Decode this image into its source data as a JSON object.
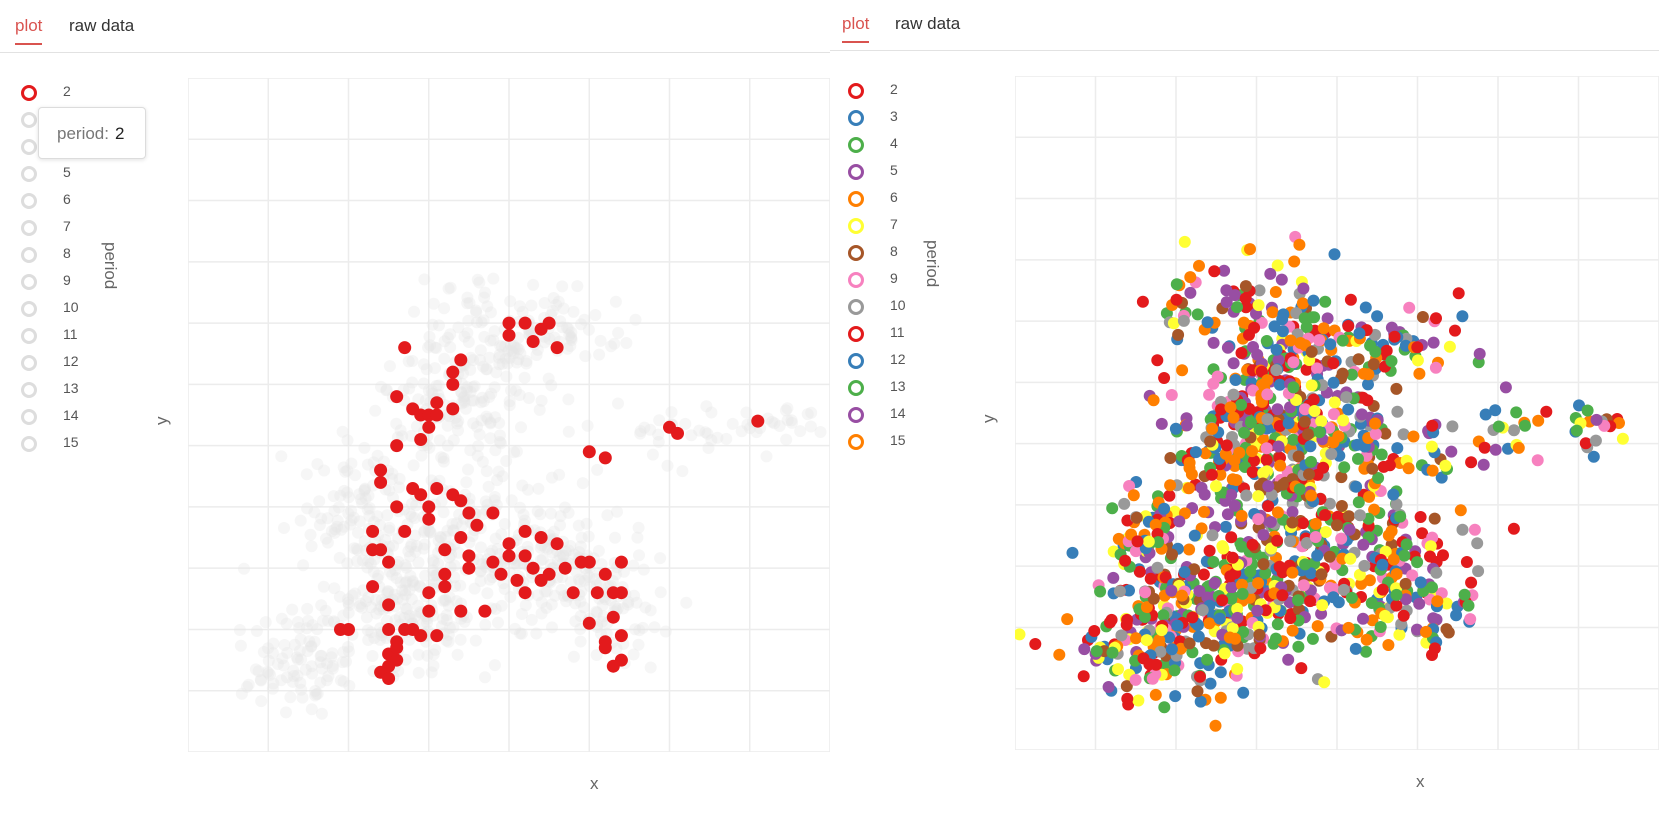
{
  "left": {
    "tabs": [
      {
        "label": "plot",
        "active": true
      },
      {
        "label": "raw data",
        "active": false
      }
    ],
    "legend_title": "period",
    "tooltip": {
      "key": "period:",
      "value": "2"
    },
    "selected_period": "2",
    "chart_data": {
      "type": "scatter",
      "xlabel": "x",
      "ylabel": "y",
      "xlim": [
        0,
        8
      ],
      "ylim": [
        0,
        11
      ],
      "grid": true,
      "legend_placement": "left",
      "legend": [
        "2",
        "3",
        "4",
        "5",
        "6",
        "7",
        "8",
        "9",
        "10",
        "11",
        "12",
        "13",
        "14",
        "15"
      ],
      "highlighted_series": "2",
      "highlight_color": "#e31a1c",
      "background_color": "#e6e6e6",
      "series": [
        {
          "name": "2",
          "points": [
            [
              4.0,
              7.0
            ],
            [
              4.2,
              7.0
            ],
            [
              4.5,
              7.0
            ],
            [
              4.0,
              6.8
            ],
            [
              4.3,
              6.7
            ],
            [
              4.4,
              6.9
            ],
            [
              4.6,
              6.6
            ],
            [
              2.7,
              6.6
            ],
            [
              3.3,
              6.2
            ],
            [
              3.4,
              6.4
            ],
            [
              3.3,
              6.0
            ],
            [
              3.1,
              5.7
            ],
            [
              2.6,
              5.8
            ],
            [
              2.8,
              5.6
            ],
            [
              2.9,
              5.5
            ],
            [
              3.0,
              5.5
            ],
            [
              3.1,
              5.5
            ],
            [
              3.3,
              5.6
            ],
            [
              3.0,
              5.3
            ],
            [
              2.9,
              5.1
            ],
            [
              2.6,
              5.0
            ],
            [
              5.0,
              4.9
            ],
            [
              5.2,
              4.8
            ],
            [
              6.1,
              5.2
            ],
            [
              7.1,
              5.4
            ],
            [
              2.4,
              4.6
            ],
            [
              2.4,
              4.4
            ],
            [
              2.8,
              4.3
            ],
            [
              2.9,
              4.2
            ],
            [
              3.1,
              4.3
            ],
            [
              3.3,
              4.2
            ],
            [
              3.4,
              4.1
            ],
            [
              3.0,
              4.0
            ],
            [
              3.0,
              3.8
            ],
            [
              2.6,
              4.0
            ],
            [
              3.5,
              3.9
            ],
            [
              3.6,
              3.7
            ],
            [
              3.8,
              3.9
            ],
            [
              4.2,
              3.6
            ],
            [
              4.4,
              3.5
            ],
            [
              4.6,
              3.4
            ],
            [
              3.4,
              3.5
            ],
            [
              3.2,
              3.3
            ],
            [
              3.5,
              3.2
            ],
            [
              3.8,
              3.1
            ],
            [
              4.0,
              3.2
            ],
            [
              4.2,
              3.2
            ],
            [
              4.3,
              3.0
            ],
            [
              4.5,
              2.9
            ],
            [
              4.7,
              3.0
            ],
            [
              4.9,
              3.1
            ],
            [
              4.0,
              3.4
            ],
            [
              3.5,
              3.0
            ],
            [
              3.2,
              2.9
            ],
            [
              2.3,
              3.6
            ],
            [
              2.3,
              3.3
            ],
            [
              2.4,
              3.3
            ],
            [
              2.7,
              3.6
            ],
            [
              2.5,
              3.1
            ],
            [
              2.3,
              2.7
            ],
            [
              2.5,
              2.4
            ],
            [
              3.0,
              2.6
            ],
            [
              3.0,
              2.3
            ],
            [
              3.2,
              2.7
            ],
            [
              3.4,
              2.3
            ],
            [
              3.7,
              2.3
            ],
            [
              3.9,
              2.9
            ],
            [
              4.1,
              2.8
            ],
            [
              4.2,
              2.6
            ],
            [
              4.4,
              2.8
            ],
            [
              4.8,
              2.6
            ],
            [
              2.5,
              2.0
            ],
            [
              2.7,
              2.0
            ],
            [
              2.9,
              1.9
            ],
            [
              2.6,
              1.8
            ],
            [
              2.5,
              1.6
            ],
            [
              2.5,
              1.4
            ],
            [
              2.4,
              1.3
            ],
            [
              2.5,
              1.2
            ],
            [
              2.8,
              2.0
            ],
            [
              3.1,
              1.9
            ],
            [
              2.0,
              2.0
            ],
            [
              1.9,
              2.0
            ],
            [
              2.6,
              1.7
            ],
            [
              2.6,
              1.5
            ],
            [
              5.3,
              2.6
            ],
            [
              5.1,
              2.6
            ],
            [
              5.4,
              2.6
            ],
            [
              5.2,
              2.9
            ],
            [
              5.0,
              2.1
            ],
            [
              5.2,
              1.8
            ],
            [
              5.4,
              1.5
            ],
            [
              5.3,
              1.4
            ],
            [
              5.2,
              1.7
            ],
            [
              5.3,
              2.2
            ],
            [
              5.4,
              1.9
            ],
            [
              5.0,
              3.1
            ],
            [
              5.4,
              3.1
            ],
            [
              6.0,
              5.3
            ]
          ]
        }
      ]
    }
  },
  "right": {
    "tabs": [
      {
        "label": "plot",
        "active": true
      },
      {
        "label": "raw data",
        "active": false
      }
    ],
    "legend_title": "period",
    "legend": [
      {
        "label": "2",
        "color": "#e31a1c"
      },
      {
        "label": "3",
        "color": "#377eb8"
      },
      {
        "label": "4",
        "color": "#4daf4a"
      },
      {
        "label": "5",
        "color": "#984ea3"
      },
      {
        "label": "6",
        "color": "#ff7f00"
      },
      {
        "label": "7",
        "color": "#ffff33"
      },
      {
        "label": "8",
        "color": "#a65628"
      },
      {
        "label": "9",
        "color": "#f781bf"
      },
      {
        "label": "10",
        "color": "#999999"
      },
      {
        "label": "11",
        "color": "#e31a1c"
      },
      {
        "label": "12",
        "color": "#377eb8"
      },
      {
        "label": "13",
        "color": "#4daf4a"
      },
      {
        "label": "14",
        "color": "#984ea3"
      },
      {
        "label": "15",
        "color": "#ff7f00"
      }
    ],
    "chart_data": {
      "type": "scatter",
      "xlabel": "x",
      "ylabel": "y",
      "xlim": [
        0,
        8
      ],
      "ylim": [
        0,
        11
      ],
      "grid": true,
      "legend_placement": "left",
      "series_names": [
        "2",
        "3",
        "4",
        "5",
        "6",
        "7",
        "8",
        "9",
        "10",
        "11",
        "12",
        "13",
        "14",
        "15"
      ]
    }
  }
}
